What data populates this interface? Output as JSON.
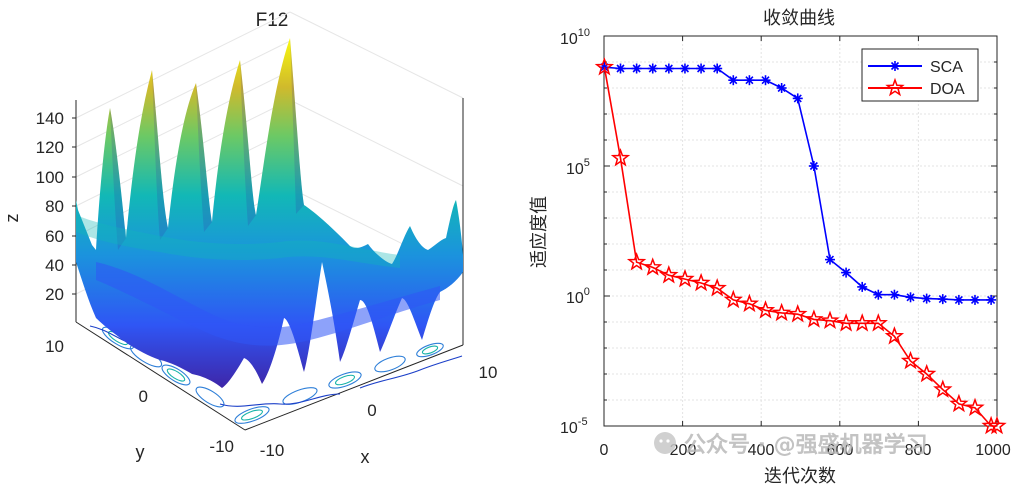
{
  "chart_data": [
    {
      "type": "surface3d",
      "title": "F12",
      "xlabel": "x",
      "ylabel": "y",
      "zlabel": "z",
      "x_ticks": [
        "-10",
        "0",
        "10"
      ],
      "y_ticks": [
        "10",
        "0",
        "-10"
      ],
      "z_ticks": [
        "20",
        "40",
        "60",
        "80",
        "100",
        "120",
        "140"
      ],
      "x_range": [
        -10,
        10
      ],
      "y_range": [
        -10,
        10
      ],
      "z_range": [
        0,
        150
      ],
      "colormap": "parula",
      "peak_values": [
        120,
        134,
        140,
        145,
        152
      ],
      "right_bumps": [
        48,
        62,
        70,
        55
      ]
    },
    {
      "type": "line",
      "title": "收敛曲线",
      "xlabel": "迭代次数",
      "ylabel": "适应度值",
      "yscale": "log",
      "xlim": [
        0,
        1000
      ],
      "ylim": [
        1e-05,
        10000000000.0
      ],
      "x_ticks": [
        "0",
        "200",
        "400",
        "600",
        "800",
        "1000"
      ],
      "y_ticks": [
        {
          "base": "10",
          "exp": "10"
        },
        {
          "base": "10",
          "exp": "5"
        },
        {
          "base": "10",
          "exp": "0"
        },
        {
          "base": "10",
          "exp": "-5"
        }
      ],
      "grid": true,
      "legend_position": "top-right",
      "series": [
        {
          "name": "SCA",
          "color": "#0000ff",
          "marker": "asterisk",
          "x": [
            1,
            42,
            83,
            124,
            165,
            206,
            247,
            288,
            329,
            370,
            411,
            452,
            493,
            534,
            575,
            616,
            657,
            698,
            739,
            780,
            821,
            862,
            903,
            944,
            985
          ],
          "log10_y": [
            8.8,
            8.75,
            8.75,
            8.75,
            8.75,
            8.75,
            8.75,
            8.75,
            8.3,
            8.3,
            8.3,
            8.0,
            7.6,
            5.0,
            1.4,
            0.9,
            0.35,
            0.05,
            0.05,
            -0.05,
            -0.1,
            -0.12,
            -0.15,
            -0.15,
            -0.15
          ]
        },
        {
          "name": "DOA",
          "color": "#ff0000",
          "marker": "pentagram",
          "x": [
            1,
            42,
            83,
            124,
            165,
            206,
            247,
            288,
            329,
            370,
            411,
            452,
            493,
            534,
            575,
            616,
            657,
            698,
            739,
            780,
            821,
            862,
            903,
            944,
            985,
            1000
          ],
          "log10_y": [
            8.8,
            5.3,
            1.3,
            1.1,
            0.8,
            0.65,
            0.5,
            0.3,
            -0.15,
            -0.3,
            -0.55,
            -0.65,
            -0.7,
            -0.9,
            -0.95,
            -1.05,
            -1.05,
            -1.05,
            -1.55,
            -2.5,
            -3.0,
            -3.6,
            -4.15,
            -4.3,
            -5.0,
            -5.0
          ]
        }
      ]
    }
  ],
  "watermark": "公众号 · @强盛机器学习"
}
